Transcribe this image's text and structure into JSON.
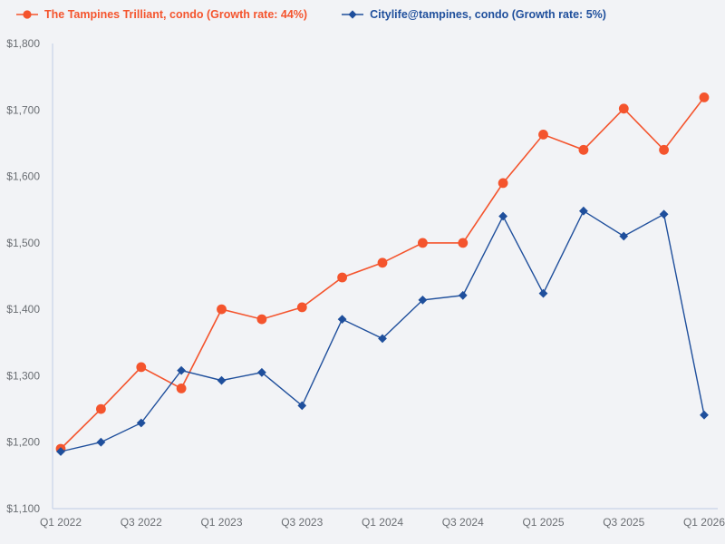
{
  "page": {
    "background_color": "#f2f3f6",
    "axis_color": "#c9d3e8",
    "tick_label_color": "#6a6e73"
  },
  "legend": {
    "items": [
      {
        "label": "The Tampines Trilliant, condo (Growth rate: 44%)",
        "color": "#f4542d",
        "marker": "circle"
      },
      {
        "label": "Citylife@tampines, condo (Growth rate: 5%)",
        "color": "#1f4f9c",
        "marker": "diamond"
      }
    ]
  },
  "chart_data": {
    "type": "line",
    "title": "",
    "xlabel": "",
    "ylabel": "",
    "categories": [
      "Q1 2022",
      "Q2 2022",
      "Q3 2022",
      "Q4 2022",
      "Q1 2023",
      "Q2 2023",
      "Q3 2023",
      "Q4 2023",
      "Q1 2024",
      "Q2 2024",
      "Q3 2024",
      "Q4 2024",
      "Q1 2025",
      "Q2 2025",
      "Q3 2025",
      "Q4 2025",
      "Q1 2026"
    ],
    "series": [
      {
        "name": "The Tampines Trilliant, condo",
        "growth_rate": "44%",
        "color": "#f4542d",
        "marker": "circle",
        "values": [
          1190,
          1250,
          1313,
          1281,
          1400,
          1385,
          1403,
          1448,
          1470,
          1500,
          1500,
          1590,
          1663,
          1640,
          1702,
          1640,
          1719
        ]
      },
      {
        "name": "Citylife@tampines, condo",
        "growth_rate": "5%",
        "color": "#1f4f9c",
        "marker": "diamond",
        "values": [
          1186,
          1200,
          1229,
          1308,
          1293,
          1305,
          1255,
          1385,
          1356,
          1414,
          1421,
          1540,
          1424,
          1548,
          1510,
          1543,
          1241
        ]
      }
    ],
    "ylim": [
      1100,
      1800
    ],
    "ytick_step": 100,
    "ytick_labels": [
      "$1,100",
      "$1,200",
      "$1,300",
      "$1,400",
      "$1,500",
      "$1,600",
      "$1,700",
      "$1,800"
    ],
    "xtick_every": 2,
    "xtick_labels_shown": [
      "Q1 2022",
      "Q3 2022",
      "Q1 2023",
      "Q3 2023",
      "Q1 2024",
      "Q3 2024",
      "Q1 2025",
      "Q3 2025",
      "Q1 2026"
    ],
    "grid": false,
    "legend_position": "top-left"
  }
}
